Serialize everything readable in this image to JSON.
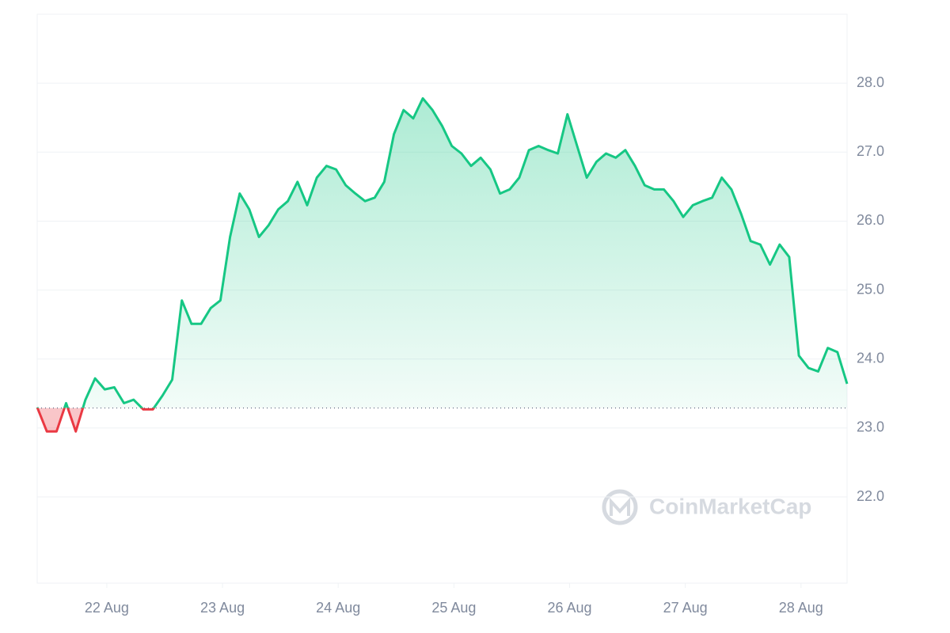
{
  "chart_data": {
    "type": "line",
    "values": [
      23.3,
      22.95,
      22.95,
      23.36,
      22.95,
      23.41,
      23.72,
      23.56,
      23.59,
      23.36,
      23.41,
      23.27,
      23.27,
      23.47,
      23.7,
      24.85,
      24.51,
      24.51,
      24.74,
      24.85,
      25.77,
      26.4,
      26.17,
      25.77,
      25.94,
      26.17,
      26.29,
      26.57,
      26.23,
      26.63,
      26.8,
      26.75,
      26.52,
      26.4,
      26.29,
      26.34,
      26.57,
      27.26,
      27.61,
      27.49,
      27.78,
      27.61,
      27.38,
      27.09,
      26.98,
      26.8,
      26.92,
      26.75,
      26.4,
      26.46,
      26.63,
      27.03,
      27.09,
      27.03,
      26.98,
      27.55,
      27.09,
      26.63,
      26.86,
      26.98,
      26.92,
      27.03,
      26.8,
      26.52,
      26.46,
      26.46,
      26.29,
      26.06,
      26.23,
      26.29,
      26.34,
      26.63,
      26.46,
      26.11,
      25.71,
      25.66,
      25.37,
      25.66,
      25.48,
      24.05,
      23.87,
      23.82,
      24.16,
      24.1,
      23.64
    ],
    "color": "#16c784",
    "down_color": "#ea3943",
    "baseline": 23.29,
    "xlim": [
      0,
      84
    ],
    "xticks": [
      {
        "value": 7.22,
        "label": "22 Aug"
      },
      {
        "value": 19.22,
        "label": "23 Aug"
      },
      {
        "value": 31.22,
        "label": "24 Aug"
      },
      {
        "value": 43.22,
        "label": "25 Aug"
      },
      {
        "value": 55.22,
        "label": "26 Aug"
      },
      {
        "value": 67.22,
        "label": "27 Aug"
      },
      {
        "value": 79.22,
        "label": "28 Aug"
      }
    ],
    "ylim": [
      20.75,
      29.0
    ],
    "yticks": [
      {
        "value": 22,
        "label": "22.0"
      },
      {
        "value": 23,
        "label": "23.0"
      },
      {
        "value": 24,
        "label": "24.0"
      },
      {
        "value": 25,
        "label": "25.0"
      },
      {
        "value": 26,
        "label": "26.0"
      },
      {
        "value": 27,
        "label": "27.0"
      },
      {
        "value": 28,
        "label": "28.0"
      }
    ],
    "grid": true,
    "watermark": "CoinMarketCap"
  }
}
